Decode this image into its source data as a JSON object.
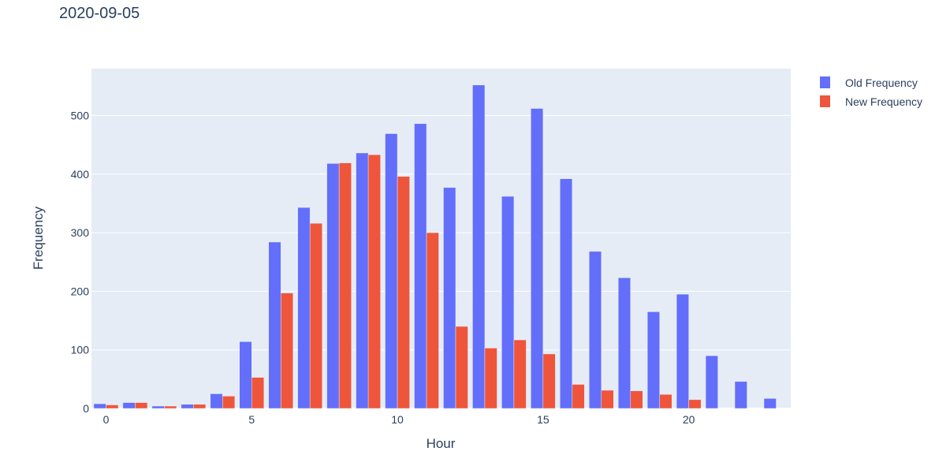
{
  "chart_data": {
    "type": "bar",
    "title": "2020-09-05",
    "xlabel": "Hour",
    "ylabel": "Frequency",
    "categories": [
      0,
      1,
      2,
      3,
      4,
      5,
      6,
      7,
      8,
      9,
      10,
      11,
      12,
      13,
      14,
      15,
      16,
      17,
      18,
      19,
      20,
      21,
      22,
      23
    ],
    "x_tick_labels": [
      "0",
      "5",
      "10",
      "15",
      "20"
    ],
    "x_ticks": [
      0,
      5,
      10,
      15,
      20
    ],
    "y_tick_labels": [
      "0",
      "100",
      "200",
      "300",
      "400",
      "500"
    ],
    "y_ticks": [
      0,
      100,
      200,
      300,
      400,
      500
    ],
    "xlim": [
      -0.5,
      23.5
    ],
    "ylim": [
      0,
      580
    ],
    "grid": true,
    "legend_position": "top-right",
    "background": "#e5ecf6",
    "series": [
      {
        "name": "Old Frequency",
        "color": "#636efa",
        "values": [
          8,
          10,
          4,
          7,
          25,
          114,
          284,
          343,
          418,
          436,
          469,
          486,
          377,
          552,
          362,
          512,
          392,
          268,
          223,
          165,
          195,
          90,
          46,
          17
        ]
      },
      {
        "name": "New Frequency",
        "color": "#ef553b",
        "values": [
          6,
          10,
          4,
          7,
          21,
          53,
          197,
          316,
          419,
          433,
          396,
          300,
          140,
          103,
          117,
          93,
          41,
          31,
          30,
          24,
          15,
          0,
          0,
          0
        ]
      }
    ]
  }
}
